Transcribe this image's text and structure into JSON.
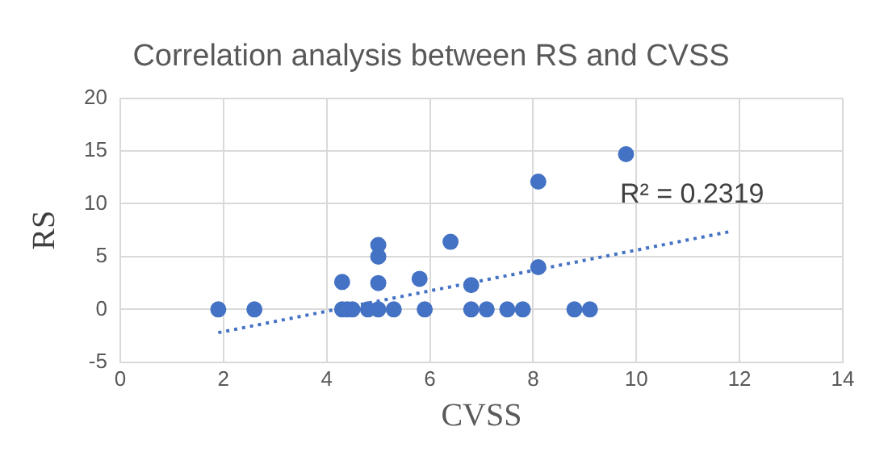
{
  "chart_data": {
    "type": "scatter",
    "title": "Correlation analysis between RS and CVSS",
    "xlabel": "CVSS",
    "ylabel": "RS",
    "xlim": [
      0,
      14
    ],
    "xticks": [
      0,
      2,
      4,
      6,
      8,
      10,
      12,
      14
    ],
    "ylim": [
      -5,
      20
    ],
    "yticks": [
      -5,
      0,
      5,
      10,
      15,
      20
    ],
    "grid": true,
    "legend": false,
    "marker": "circle",
    "series": [
      {
        "type": "scatter",
        "color": "#4472c4",
        "x": [
          1.9,
          2.6,
          4.3,
          4.3,
          4.4,
          4.5,
          4.8,
          5.0,
          5.0,
          5.0,
          5.0,
          5.3,
          5.8,
          5.9,
          6.4,
          6.8,
          6.8,
          7.1,
          7.5,
          7.8,
          8.1,
          8.1,
          8.8,
          9.1,
          9.8
        ],
        "values": [
          0,
          0,
          2.6,
          0,
          0,
          0,
          0,
          6.1,
          5.0,
          2.5,
          0,
          0,
          2.9,
          0,
          6.4,
          2.3,
          0,
          0,
          0,
          0,
          4.0,
          12.1,
          0,
          0,
          14.7
        ]
      },
      {
        "type": "line",
        "color": "#4472c4",
        "marker": "none",
        "line_style": "dotted",
        "x": [
          1.9,
          11.85
        ],
        "values": [
          -2.2,
          7.4
        ]
      }
    ],
    "annotations": [
      {
        "text": "R² = 0.2319",
        "x": 11.85,
        "y": 7.4
      }
    ]
  }
}
